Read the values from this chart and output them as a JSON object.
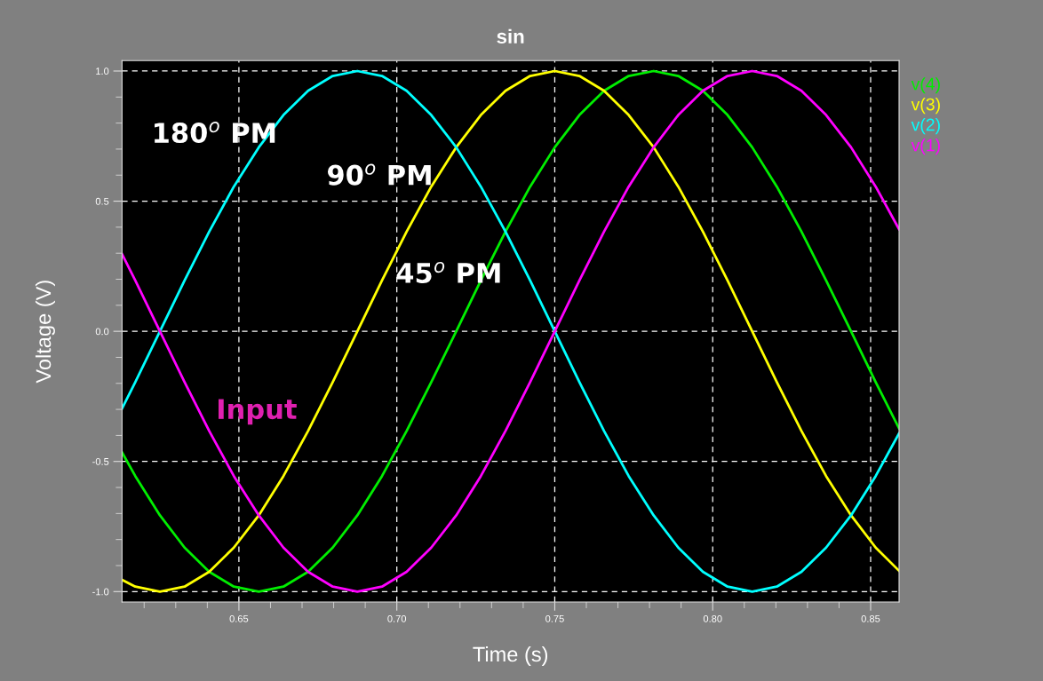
{
  "chart_data": {
    "type": "line",
    "title": "sin",
    "xlabel": "Time (s)",
    "ylabel": "Voltage (V)",
    "x": [
      0.613,
      0.6172,
      0.625,
      0.6328,
      0.6406,
      0.6484,
      0.6563,
      0.6641,
      0.6719,
      0.6797,
      0.6875,
      0.6953,
      0.7031,
      0.7109,
      0.7188,
      0.7266,
      0.7344,
      0.7422,
      0.75,
      0.7578,
      0.7656,
      0.7734,
      0.7813,
      0.7891,
      0.7969,
      0.8047,
      0.8125,
      0.8203,
      0.8281,
      0.8359,
      0.8438,
      0.8516,
      0.859
    ],
    "series": [
      {
        "name": "v(4)",
        "color": "#00ee00",
        "values": [
          -0.465,
          -0.556,
          -0.707,
          -0.831,
          -0.924,
          -0.981,
          -1,
          -0.981,
          -0.924,
          -0.831,
          -0.707,
          -0.556,
          -0.383,
          -0.195,
          0,
          0.195,
          0.383,
          0.556,
          0.707,
          0.831,
          0.924,
          0.981,
          1,
          0.981,
          0.924,
          0.831,
          0.707,
          0.556,
          0.383,
          0.195,
          0,
          -0.195,
          -0.373
        ]
      },
      {
        "name": "v(3)",
        "color": "#ffff00",
        "values": [
          -0.955,
          -0.981,
          -1,
          -0.981,
          -0.924,
          -0.831,
          -0.707,
          -0.556,
          -0.383,
          -0.195,
          0,
          0.195,
          0.383,
          0.556,
          0.707,
          0.831,
          0.924,
          0.981,
          1,
          0.981,
          0.924,
          0.831,
          0.707,
          0.556,
          0.383,
          0.195,
          0,
          -0.195,
          -0.383,
          -0.556,
          -0.707,
          -0.831,
          -0.92
        ]
      },
      {
        "name": "v(2)",
        "color": "#00ffff",
        "values": [
          -0.297,
          -0.195,
          0,
          0.195,
          0.383,
          0.556,
          0.707,
          0.831,
          0.924,
          0.981,
          1,
          0.981,
          0.924,
          0.831,
          0.707,
          0.556,
          0.383,
          0.195,
          0,
          -0.195,
          -0.383,
          -0.556,
          -0.707,
          -0.831,
          -0.924,
          -0.981,
          -1,
          -0.981,
          -0.924,
          -0.831,
          -0.707,
          -0.556,
          -0.392
        ]
      },
      {
        "name": "v(1)",
        "color": "#ff00ff",
        "values": [
          0.297,
          0.195,
          0,
          -0.195,
          -0.383,
          -0.556,
          -0.707,
          -0.831,
          -0.924,
          -0.981,
          -1,
          -0.981,
          -0.924,
          -0.831,
          -0.707,
          -0.556,
          -0.383,
          -0.195,
          0,
          0.195,
          0.383,
          0.556,
          0.707,
          0.831,
          0.924,
          0.981,
          1,
          0.981,
          0.924,
          0.831,
          0.707,
          0.556,
          0.392
        ]
      }
    ],
    "xlim": [
      0.613,
      0.859
    ],
    "ylim": [
      -1.04,
      1.04
    ],
    "xticks": [
      {
        "value": 0.62,
        "label": null
      },
      {
        "value": 0.63,
        "label": null
      },
      {
        "value": 0.64,
        "label": null
      },
      {
        "value": 0.65,
        "label": "0.65"
      },
      {
        "value": 0.66,
        "label": null
      },
      {
        "value": 0.67,
        "label": null
      },
      {
        "value": 0.68,
        "label": null
      },
      {
        "value": 0.69,
        "label": null
      },
      {
        "value": 0.7,
        "label": "0.70"
      },
      {
        "value": 0.71,
        "label": null
      },
      {
        "value": 0.72,
        "label": null
      },
      {
        "value": 0.73,
        "label": null
      },
      {
        "value": 0.74,
        "label": null
      },
      {
        "value": 0.75,
        "label": "0.75"
      },
      {
        "value": 0.76,
        "label": null
      },
      {
        "value": 0.77,
        "label": null
      },
      {
        "value": 0.78,
        "label": null
      },
      {
        "value": 0.79,
        "label": null
      },
      {
        "value": 0.8,
        "label": "0.80"
      },
      {
        "value": 0.81,
        "label": null
      },
      {
        "value": 0.82,
        "label": null
      },
      {
        "value": 0.83,
        "label": null
      },
      {
        "value": 0.84,
        "label": null
      },
      {
        "value": 0.85,
        "label": "0.85"
      }
    ],
    "yticks": [
      {
        "value": -1.0,
        "label": "-1.0"
      },
      {
        "value": -0.9,
        "label": null
      },
      {
        "value": -0.8,
        "label": null
      },
      {
        "value": -0.7,
        "label": null
      },
      {
        "value": -0.6,
        "label": null
      },
      {
        "value": -0.5,
        "label": "-0.5"
      },
      {
        "value": -0.4,
        "label": null
      },
      {
        "value": -0.3,
        "label": null
      },
      {
        "value": -0.2,
        "label": null
      },
      {
        "value": -0.1,
        "label": null
      },
      {
        "value": 0.0,
        "label": "0.0"
      },
      {
        "value": 0.1,
        "label": null
      },
      {
        "value": 0.2,
        "label": null
      },
      {
        "value": 0.3,
        "label": null
      },
      {
        "value": 0.4,
        "label": null
      },
      {
        "value": 0.5,
        "label": "0.5"
      },
      {
        "value": 0.6,
        "label": null
      },
      {
        "value": 0.7,
        "label": null
      },
      {
        "value": 0.8,
        "label": null
      },
      {
        "value": 0.9,
        "label": null
      },
      {
        "value": 1.0,
        "label": "1.0"
      }
    ],
    "grid": true,
    "legend": "top right",
    "marker": "none",
    "line_style": "solid",
    "annotations": [
      "180$^{o}$ PM",
      "90$^{o}$ PM",
      "45$^{o}$ PM",
      "Input"
    ]
  }
}
